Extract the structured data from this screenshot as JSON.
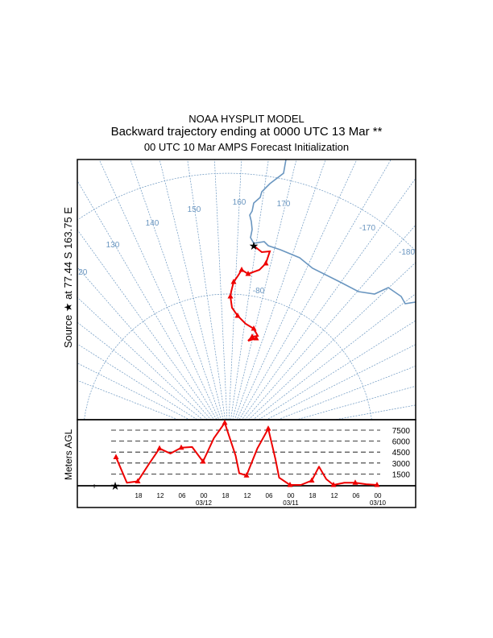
{
  "header": {
    "line1": "NOAA HYSPLIT MODEL",
    "line2": "Backward trajectory ending at 0000 UTC 13 Mar **",
    "line3": "00 UTC 10 Mar    AMPS  Forecast Initialization"
  },
  "source_label": "Source ★ at  77.44 S  163.75 E",
  "colors": {
    "trajectory": "#ee0000",
    "map": "#6a96c0"
  },
  "chart_data": [
    {
      "type": "map",
      "longitude_labels": [
        "120",
        "130",
        "140",
        "150",
        "160",
        "170",
        "-170",
        "-180"
      ],
      "latitude_label": "-80",
      "source": {
        "lat": -77.44,
        "lon": 163.75
      },
      "trajectory_name": "backward trajectory (72 h)"
    },
    {
      "type": "line",
      "ylabel": "Meters AGL",
      "height_levels": [
        "7500",
        "6000",
        "4500",
        "3000",
        "1500"
      ],
      "level_values": [
        7500,
        6000,
        4500,
        3000,
        1500
      ],
      "x_tick_labels": [
        "18",
        "12",
        "06",
        "00",
        "18",
        "12",
        "06",
        "00",
        "18",
        "12",
        "06",
        "00"
      ],
      "date_labels": [
        "03/12",
        "03/11",
        "03/10"
      ],
      "hours_before_end": [
        0,
        3,
        6,
        9,
        12,
        14,
        16,
        18,
        21,
        24,
        27,
        28,
        30,
        33,
        36,
        38,
        39,
        42,
        45,
        48,
        51,
        54,
        57,
        60,
        63,
        66,
        69,
        72
      ],
      "heights": [
        0,
        100,
        300,
        300,
        0,
        800,
        2500,
        600,
        0,
        0,
        1000,
        3500,
        7700,
        5000,
        1300,
        1600,
        4000,
        8500,
        6400,
        3200,
        5200,
        5100,
        4300,
        5000,
        2800,
        500,
        300,
        3800
      ]
    }
  ]
}
